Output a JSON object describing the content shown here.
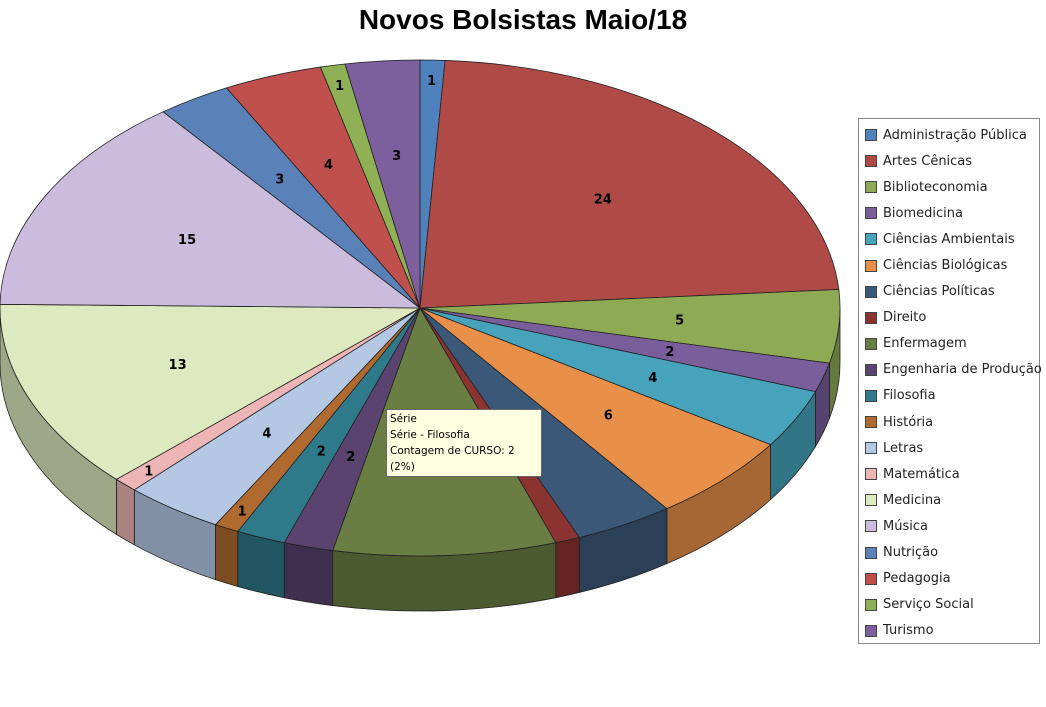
{
  "chart_data": {
    "type": "pie",
    "title": "Novos Bolsistas Maio/18",
    "legend_position": "right",
    "style": "3d",
    "categories": [
      "Administração Pública",
      "Artes Cênicas",
      "Biblioteconomia",
      "Biomedicina",
      "Ciências Ambientais",
      "Ciências Biológicas",
      "Ciências Políticas",
      "Direito",
      "Enfermagem",
      "Engenharia de Produção",
      "Filosofia",
      "História",
      "Letras",
      "Matemática",
      "Medicina",
      "Música",
      "Nutrição",
      "Pedagogia",
      "Serviço Social",
      "Turismo"
    ],
    "values": [
      1,
      24,
      5,
      2,
      4,
      6,
      4,
      1,
      9,
      2,
      2,
      1,
      4,
      1,
      13,
      15,
      3,
      4,
      1,
      3
    ],
    "data_labels_shown": [
      true,
      true,
      true,
      true,
      true,
      true,
      false,
      false,
      false,
      true,
      true,
      true,
      true,
      true,
      true,
      true,
      true,
      true,
      true,
      true
    ],
    "colors": [
      "#4F81BD",
      "#B04A47",
      "#8EAA55",
      "#7A5E9C",
      "#46A3BB",
      "#E8904A",
      "#3C5878",
      "#8A3330",
      "#6A7D42",
      "#5A436F",
      "#2E7A8A",
      "#B06A30",
      "#B4C8E4",
      "#EDB5B5",
      "#DDE9BF",
      "#CBBBDD",
      "#5A82B8",
      "#C0504D",
      "#8FB054",
      "#7E5F9E"
    ]
  },
  "tooltip": {
    "line1": "Série",
    "line2": "Série - Filosofia",
    "line3": "Contagem de CURSO: 2 (2%)"
  }
}
